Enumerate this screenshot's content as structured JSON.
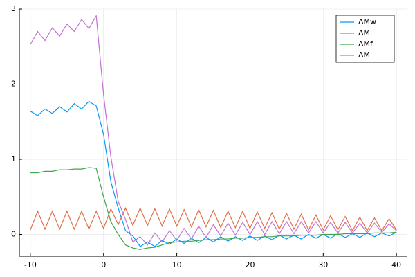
{
  "chart_data": {
    "type": "line",
    "x": [
      -10,
      -9,
      -8,
      -7,
      -6,
      -5,
      -4,
      -3,
      -2,
      -1,
      0,
      1,
      2,
      3,
      4,
      5,
      6,
      7,
      8,
      9,
      10,
      11,
      12,
      13,
      14,
      15,
      16,
      17,
      18,
      19,
      20,
      21,
      22,
      23,
      24,
      25,
      26,
      27,
      28,
      29,
      30,
      31,
      32,
      33,
      34,
      35,
      36,
      37,
      38,
      39,
      40
    ],
    "series": [
      {
        "name": "ΔMw",
        "color": "#009af9",
        "values": [
          1.64,
          1.58,
          1.67,
          1.61,
          1.7,
          1.63,
          1.74,
          1.67,
          1.77,
          1.71,
          1.33,
          0.7,
          0.35,
          0.05,
          -0.02,
          -0.16,
          -0.1,
          -0.16,
          -0.08,
          -0.13,
          -0.06,
          -0.12,
          -0.05,
          -0.11,
          -0.04,
          -0.1,
          -0.03,
          -0.09,
          -0.03,
          -0.08,
          -0.02,
          -0.08,
          -0.02,
          -0.07,
          -0.01,
          -0.06,
          -0.01,
          -0.06,
          0.0,
          -0.05,
          0.0,
          -0.05,
          0.01,
          -0.04,
          0.01,
          -0.04,
          0.02,
          -0.03,
          0.02,
          -0.02,
          0.03
        ]
      },
      {
        "name": "ΔMi",
        "color": "#e26f46",
        "values": [
          0.06,
          0.31,
          0.07,
          0.31,
          0.07,
          0.31,
          0.07,
          0.31,
          0.07,
          0.31,
          0.08,
          0.34,
          0.13,
          0.35,
          0.12,
          0.35,
          0.12,
          0.34,
          0.11,
          0.34,
          0.11,
          0.33,
          0.1,
          0.33,
          0.1,
          0.32,
          0.09,
          0.31,
          0.09,
          0.31,
          0.08,
          0.3,
          0.08,
          0.29,
          0.07,
          0.28,
          0.07,
          0.27,
          0.06,
          0.26,
          0.06,
          0.25,
          0.06,
          0.24,
          0.05,
          0.23,
          0.05,
          0.22,
          0.05,
          0.21,
          0.06
        ]
      },
      {
        "name": "ΔMf",
        "color": "#3ea44e",
        "values": [
          0.82,
          0.82,
          0.84,
          0.84,
          0.86,
          0.86,
          0.87,
          0.87,
          0.89,
          0.88,
          0.5,
          0.17,
          0.0,
          -0.14,
          -0.18,
          -0.2,
          -0.18,
          -0.17,
          -0.14,
          -0.11,
          -0.1,
          -0.09,
          -0.09,
          -0.08,
          -0.07,
          -0.07,
          -0.06,
          -0.06,
          -0.05,
          -0.05,
          -0.04,
          -0.04,
          -0.03,
          -0.03,
          -0.02,
          -0.02,
          -0.02,
          -0.01,
          -0.01,
          -0.01,
          0.0,
          0.0,
          0.0,
          0.01,
          0.01,
          0.01,
          0.01,
          0.02,
          0.02,
          0.02,
          0.03
        ]
      },
      {
        "name": "ΔM",
        "color": "#c271d2",
        "values": [
          2.53,
          2.7,
          2.58,
          2.75,
          2.64,
          2.8,
          2.7,
          2.86,
          2.74,
          2.91,
          1.86,
          1.03,
          0.44,
          0.2,
          -0.1,
          -0.03,
          -0.14,
          0.02,
          -0.1,
          0.05,
          -0.08,
          0.08,
          -0.06,
          0.11,
          -0.04,
          0.13,
          -0.02,
          0.15,
          -0.01,
          0.16,
          0.0,
          0.17,
          0.0,
          0.17,
          0.01,
          0.17,
          0.01,
          0.17,
          0.02,
          0.17,
          0.02,
          0.16,
          0.02,
          0.16,
          0.02,
          0.15,
          0.02,
          0.15,
          0.03,
          0.14,
          0.05
        ]
      }
    ],
    "xlim": [
      -11.5,
      41.4
    ],
    "ylim": [
      -0.29,
      3.0
    ],
    "xticks": [
      -10,
      0,
      10,
      20,
      30,
      40
    ],
    "yticks": [
      0,
      1,
      2,
      3
    ],
    "grid": true,
    "legend": "top-right"
  }
}
